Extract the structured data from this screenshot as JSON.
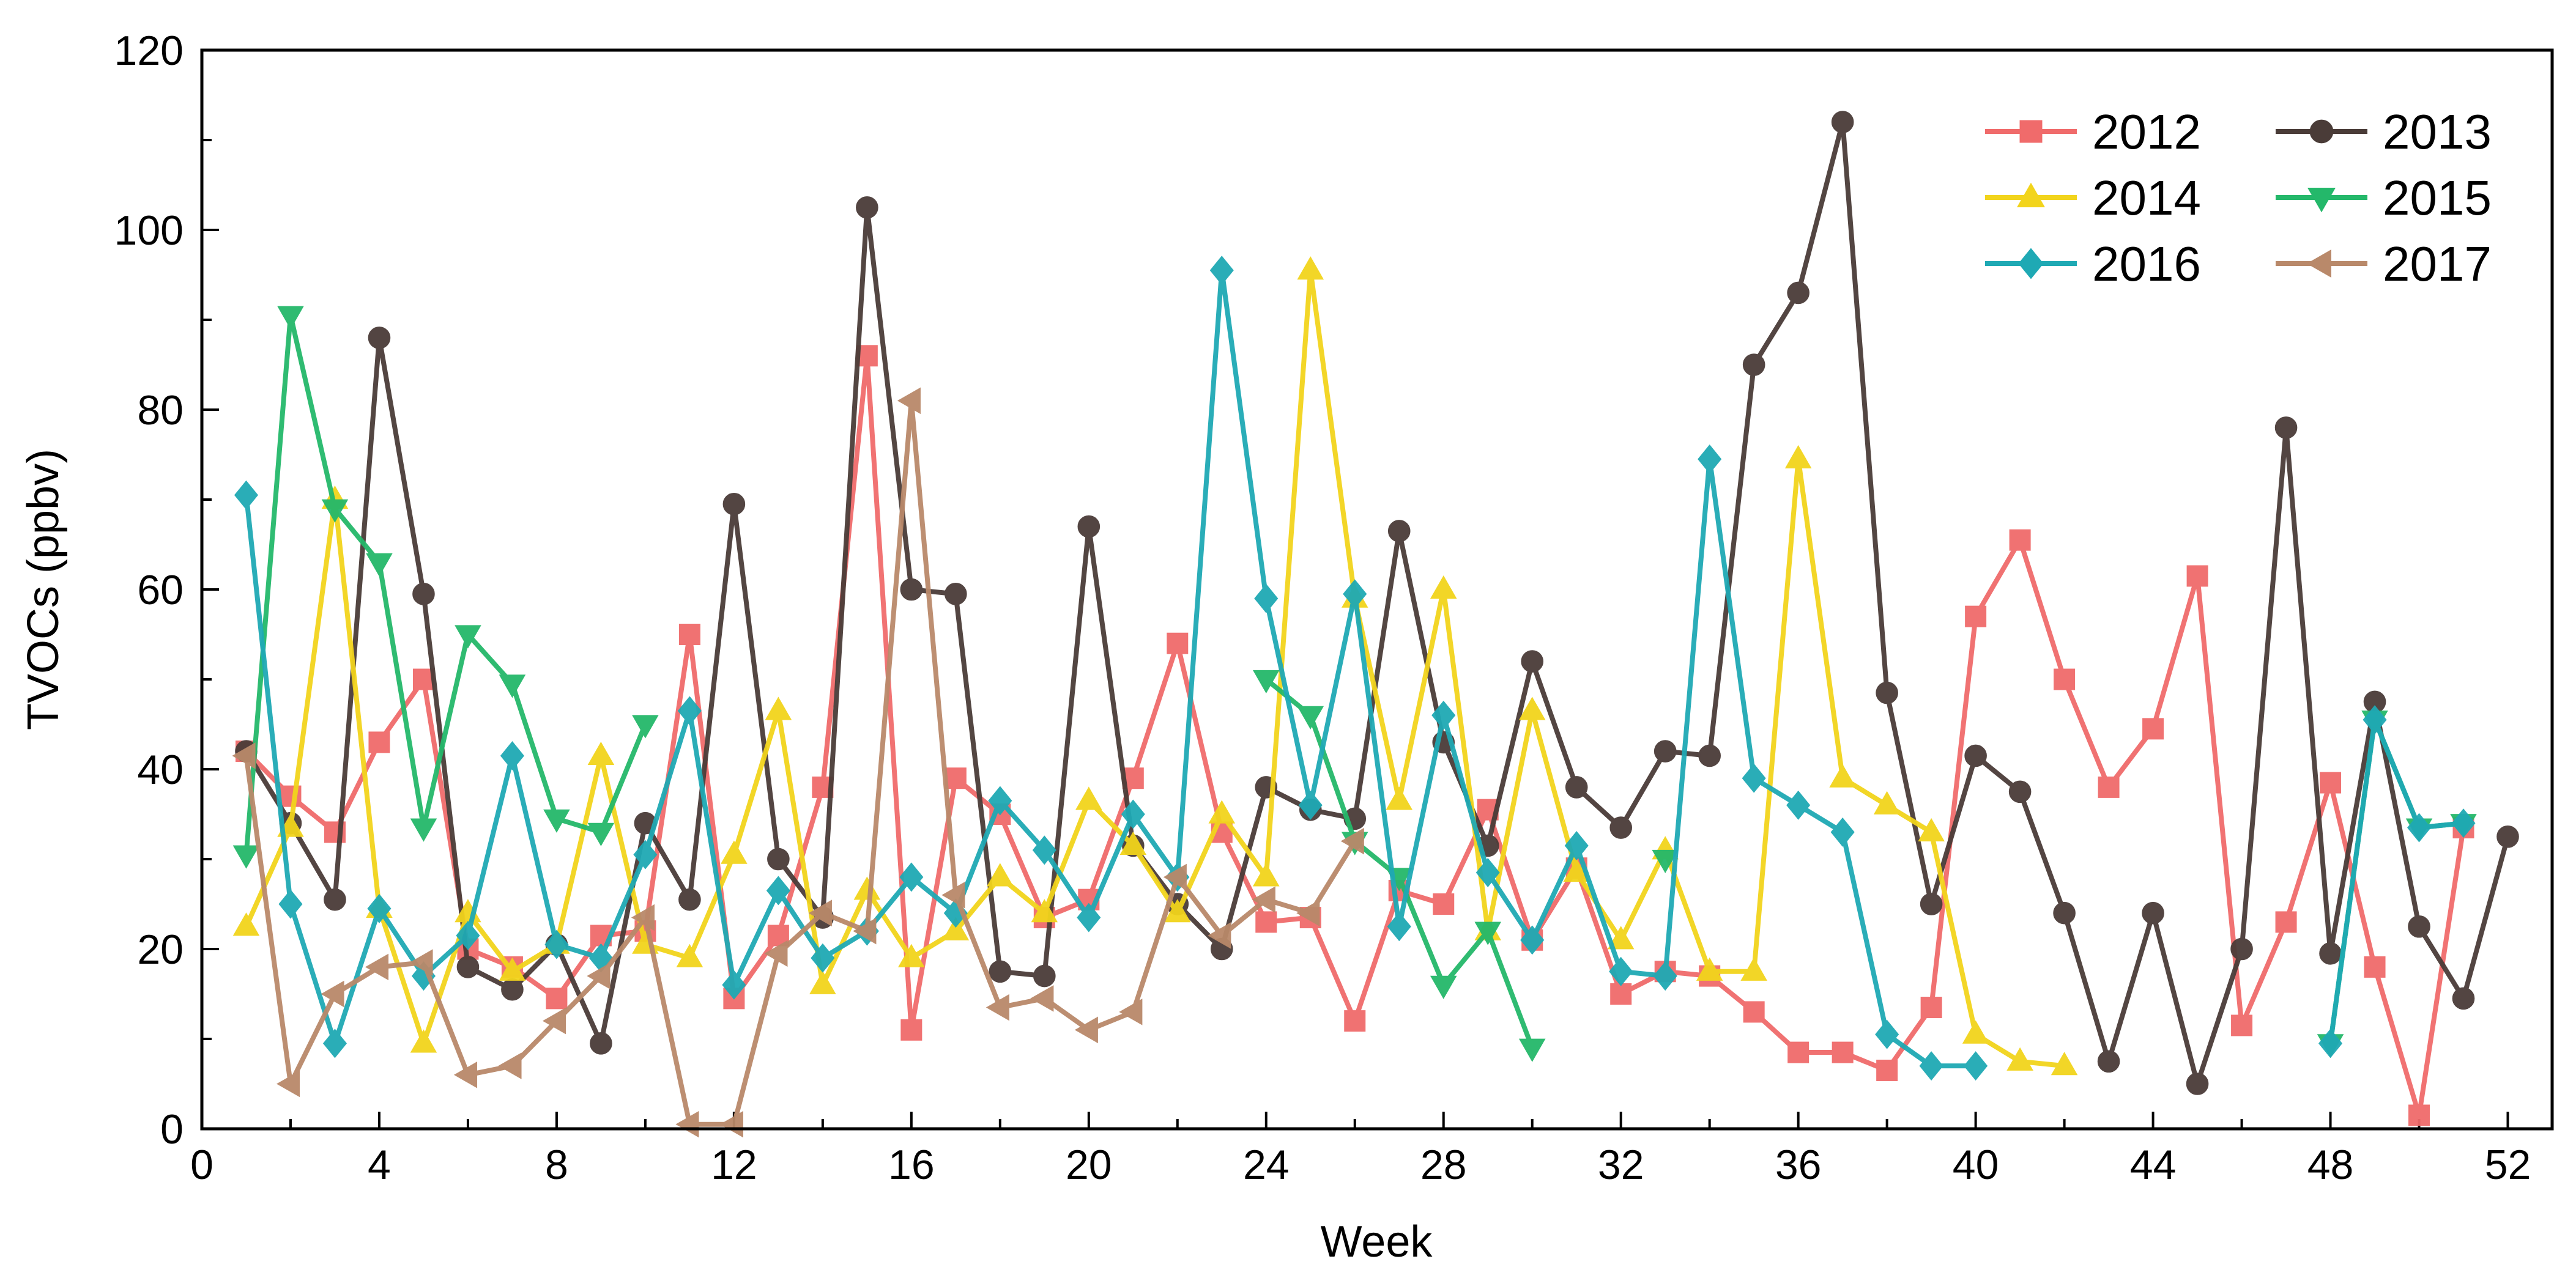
{
  "chart_data": {
    "type": "line",
    "title": "",
    "xlabel": "Week",
    "ylabel": "TVOCs (ppbv)",
    "xlim": [
      0,
      53
    ],
    "ylim": [
      0,
      120
    ],
    "xticks": [
      0,
      4,
      8,
      12,
      16,
      20,
      24,
      28,
      32,
      36,
      40,
      44,
      48,
      52
    ],
    "yticks": [
      0,
      20,
      40,
      60,
      80,
      100,
      120
    ],
    "legend_position": "top-right",
    "series": [
      {
        "name": "2012",
        "color": "#f06b6b",
        "marker": "square",
        "points": [
          [
            1,
            42
          ],
          [
            2,
            37
          ],
          [
            3,
            33
          ],
          [
            4,
            43
          ],
          [
            5,
            50
          ],
          [
            6,
            20
          ],
          [
            7,
            18
          ],
          [
            8,
            14.5
          ],
          [
            9,
            21.5
          ],
          [
            10,
            22
          ],
          [
            11,
            55
          ],
          [
            12,
            14.5
          ],
          [
            13,
            21.5
          ],
          [
            14,
            38
          ],
          [
            15,
            86
          ],
          [
            16,
            11
          ],
          [
            17,
            39
          ],
          [
            18,
            35
          ],
          [
            19,
            23.5
          ],
          [
            20,
            25.5
          ],
          [
            21,
            39
          ],
          [
            22,
            54
          ],
          [
            23,
            33
          ],
          [
            24,
            23
          ],
          [
            25,
            23.5
          ],
          [
            26,
            12
          ],
          [
            27,
            26.5
          ],
          [
            28,
            25
          ],
          [
            29,
            35.5
          ],
          [
            30,
            21
          ],
          [
            31,
            29
          ],
          [
            32,
            15
          ],
          [
            33,
            17.5
          ],
          [
            34,
            17
          ],
          [
            35,
            13
          ],
          [
            36,
            8.5
          ],
          [
            37,
            8.5
          ],
          [
            38,
            6.5
          ],
          [
            39,
            13.5
          ],
          [
            40,
            57
          ],
          [
            41,
            65.5
          ],
          [
            42,
            50
          ],
          [
            43,
            38
          ],
          [
            44,
            44.5
          ],
          [
            45,
            61.5
          ],
          [
            46,
            11.5
          ],
          [
            47,
            23
          ],
          [
            48,
            38.5
          ],
          [
            49,
            18
          ],
          [
            50,
            1.5
          ],
          [
            51,
            33.5
          ]
        ]
      },
      {
        "name": "2013",
        "color": "#4a3c38",
        "marker": "circle",
        "points": [
          [
            1,
            42
          ],
          [
            2,
            34
          ],
          [
            3,
            25.5
          ],
          [
            4,
            88
          ],
          [
            5,
            59.5
          ],
          [
            6,
            18
          ],
          [
            7,
            15.5
          ],
          [
            8,
            20.5
          ],
          [
            9,
            9.5
          ],
          [
            10,
            34
          ],
          [
            11,
            25.5
          ],
          [
            12,
            69.5
          ],
          [
            13,
            30
          ],
          [
            14,
            23.5
          ],
          [
            15,
            102.5
          ],
          [
            16,
            60
          ],
          [
            17,
            59.5
          ],
          [
            18,
            17.5
          ],
          [
            19,
            17
          ],
          [
            20,
            67
          ],
          [
            21,
            31.5
          ],
          [
            22,
            25
          ],
          [
            23,
            20
          ],
          [
            24,
            38
          ],
          [
            25,
            35.5
          ],
          [
            26,
            34.5
          ],
          [
            27,
            66.5
          ],
          [
            28,
            43
          ],
          [
            29,
            31.5
          ],
          [
            30,
            52
          ],
          [
            31,
            38
          ],
          [
            32,
            33.5
          ],
          [
            33,
            42
          ],
          [
            34,
            41.5
          ],
          [
            35,
            85
          ],
          [
            36,
            93
          ],
          [
            37,
            112
          ],
          [
            38,
            48.5
          ],
          [
            39,
            25
          ],
          [
            40,
            41.5
          ],
          [
            41,
            37.5
          ],
          [
            42,
            24
          ],
          [
            43,
            7.5
          ],
          [
            44,
            24
          ],
          [
            45,
            5
          ],
          [
            46,
            20
          ],
          [
            47,
            78
          ],
          [
            48,
            19.5
          ],
          [
            49,
            47.5
          ],
          [
            50,
            22.5
          ],
          [
            51,
            14.5
          ],
          [
            52,
            32.5
          ]
        ]
      },
      {
        "name": "2014",
        "color": "#f2d41c",
        "marker": "triangle-up",
        "points": [
          [
            1,
            22.5
          ],
          [
            2,
            33.5
          ],
          [
            3,
            70
          ],
          [
            4,
            24.5
          ],
          [
            5,
            9.5
          ],
          [
            6,
            24
          ],
          [
            7,
            17.5
          ],
          [
            8,
            20.5
          ],
          [
            9,
            41.5
          ],
          [
            10,
            20.5
          ],
          [
            11,
            19
          ],
          [
            12,
            30.5
          ],
          [
            13,
            46.5
          ],
          [
            14,
            16
          ],
          [
            15,
            26.5
          ],
          [
            16,
            19
          ],
          [
            17,
            22
          ],
          [
            18,
            28
          ],
          [
            19,
            24
          ],
          [
            20,
            36.5
          ],
          [
            21,
            31.5
          ],
          [
            22,
            24
          ],
          [
            23,
            35
          ],
          [
            24,
            28
          ],
          [
            25,
            95.5
          ],
          [
            26,
            59
          ],
          [
            27,
            36.5
          ],
          [
            28,
            60
          ],
          [
            29,
            22
          ],
          [
            30,
            46.5
          ],
          [
            31,
            28.5
          ],
          [
            32,
            21
          ],
          [
            33,
            31
          ],
          [
            34,
            17.5
          ],
          [
            35,
            17.5
          ],
          [
            36,
            74.5
          ],
          [
            37,
            39
          ],
          [
            38,
            36
          ],
          [
            39,
            33
          ],
          [
            40,
            10.5
          ],
          [
            41,
            7.5
          ],
          [
            42,
            7
          ]
        ]
      },
      {
        "name": "2015",
        "color": "#24b86a",
        "marker": "triangle-down",
        "points": [
          [
            1,
            30.5
          ],
          [
            2,
            90.5
          ],
          [
            3,
            69
          ],
          [
            4,
            63
          ],
          [
            5,
            33.5
          ],
          [
            6,
            55
          ],
          [
            7,
            49.5
          ],
          [
            8,
            34.5
          ],
          [
            9,
            33
          ],
          [
            10,
            45
          ],
          [
            24,
            50
          ],
          [
            25,
            46
          ],
          [
            26,
            32
          ],
          [
            27,
            28
          ],
          [
            28,
            16
          ],
          [
            29,
            22
          ],
          [
            30,
            9
          ],
          [
            31,
            null
          ],
          [
            32,
            null
          ],
          [
            33,
            30
          ],
          [
            48,
            9.5
          ],
          [
            49,
            45.5
          ],
          [
            50,
            33.5
          ],
          [
            51,
            34
          ]
        ]
      },
      {
        "name": "2016",
        "color": "#1fa9b4",
        "marker": "diamond",
        "points": [
          [
            1,
            70.5
          ],
          [
            2,
            25
          ],
          [
            3,
            9.5
          ],
          [
            4,
            24.5
          ],
          [
            5,
            17
          ],
          [
            6,
            21.5
          ],
          [
            7,
            41.5
          ],
          [
            8,
            20.5
          ],
          [
            9,
            19
          ],
          [
            10,
            30.5
          ],
          [
            11,
            46.5
          ],
          [
            12,
            16
          ],
          [
            13,
            26.5
          ],
          [
            14,
            19
          ],
          [
            15,
            22
          ],
          [
            16,
            28
          ],
          [
            17,
            24
          ],
          [
            18,
            36.5
          ],
          [
            19,
            31
          ],
          [
            20,
            23.5
          ],
          [
            21,
            35
          ],
          [
            22,
            28
          ],
          [
            23,
            95.5
          ],
          [
            24,
            59
          ],
          [
            25,
            36
          ],
          [
            26,
            59.5
          ],
          [
            27,
            22.5
          ],
          [
            28,
            46
          ],
          [
            29,
            28.5
          ],
          [
            30,
            21
          ],
          [
            31,
            31.5
          ],
          [
            32,
            17.5
          ],
          [
            33,
            17
          ],
          [
            34,
            74.5
          ],
          [
            35,
            39
          ],
          [
            36,
            36
          ],
          [
            37,
            33
          ],
          [
            38,
            10.5
          ],
          [
            39,
            7
          ],
          [
            40,
            7
          ],
          [
            48,
            9.5
          ],
          [
            49,
            45.5
          ],
          [
            50,
            33.5
          ],
          [
            51,
            34
          ]
        ]
      },
      {
        "name": "2017",
        "color": "#b9896a",
        "marker": "triangle-left",
        "points": [
          [
            1,
            41.5
          ],
          [
            2,
            5
          ],
          [
            3,
            15
          ],
          [
            4,
            18
          ],
          [
            5,
            18.5
          ],
          [
            6,
            6
          ],
          [
            7,
            7
          ],
          [
            8,
            12
          ],
          [
            9,
            17
          ],
          [
            10,
            23.5
          ],
          [
            11,
            0.5
          ],
          [
            12,
            0.5
          ],
          [
            13,
            19.5
          ],
          [
            14,
            24
          ],
          [
            15,
            22
          ],
          [
            16,
            81
          ],
          [
            17,
            26
          ],
          [
            18,
            13.5
          ],
          [
            19,
            14.5
          ],
          [
            20,
            11
          ],
          [
            21,
            13
          ],
          [
            22,
            28
          ],
          [
            23,
            21.5
          ],
          [
            24,
            25.5
          ],
          [
            25,
            24
          ],
          [
            26,
            32
          ]
        ]
      }
    ]
  }
}
